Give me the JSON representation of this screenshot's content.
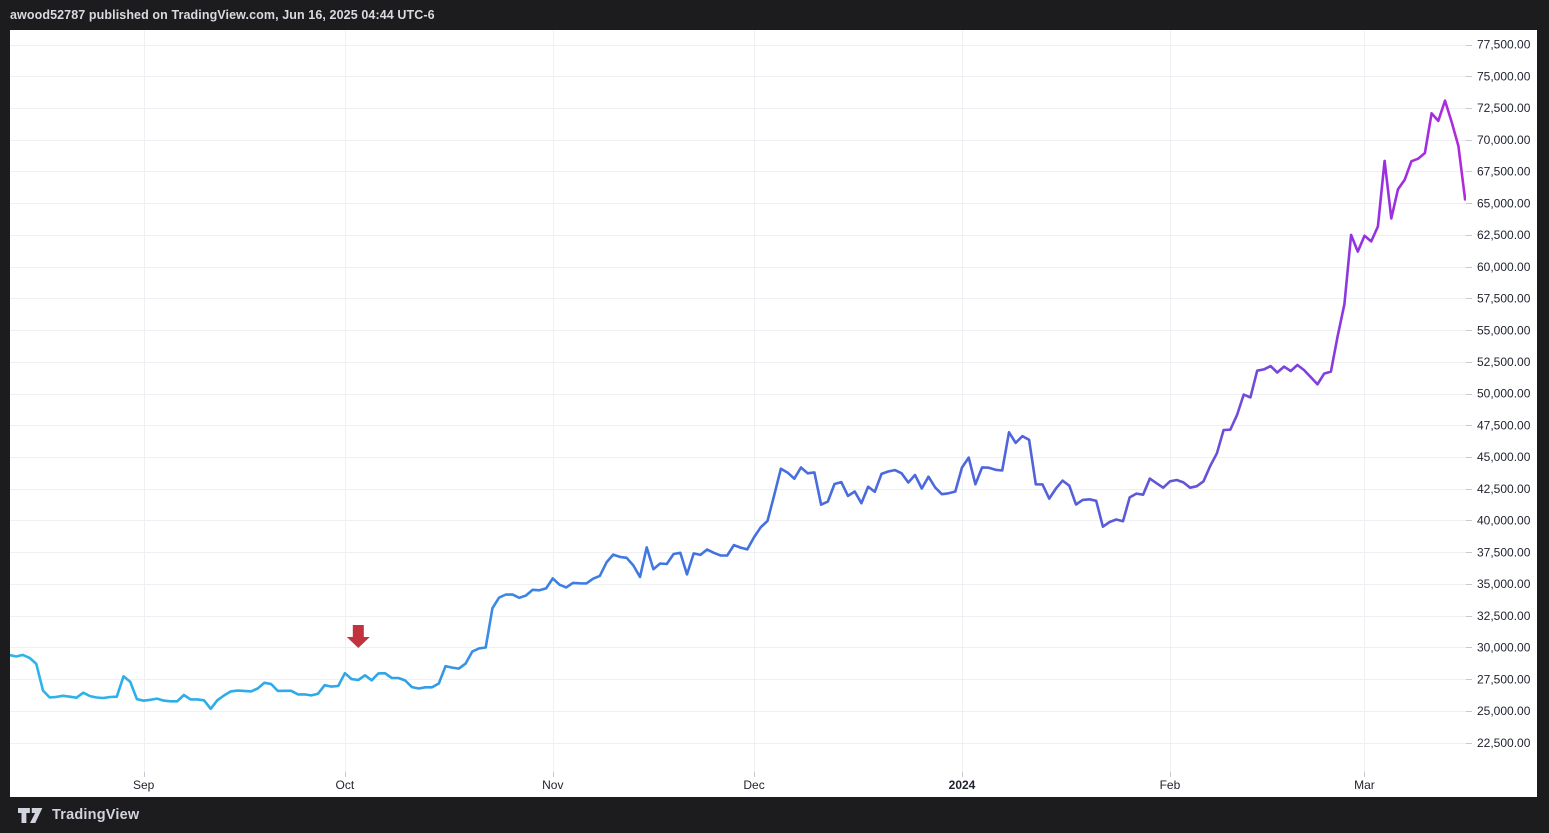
{
  "header": {
    "title": "awood52787 published on TradingView.com, Jun 16, 2025 04:44 UTC-6"
  },
  "footer": {
    "brand": "TradingView",
    "logo_icon": "tradingview-logo"
  },
  "colors": {
    "page_bg": "#1c1c1e",
    "panel_bg": "#ffffff",
    "grid": "#eef0f3",
    "tick": "#c5c8cf",
    "axis_text": "#1e222d",
    "bar_text": "#d8dbe0",
    "annotation_red": "#c2333f"
  },
  "chart_data": {
    "type": "line",
    "title": "",
    "xlabel": "",
    "ylabel": "",
    "grid": true,
    "legend": "none",
    "ylim": [
      20200,
      78600
    ],
    "x_range": [
      "2023-08-12",
      "2024-03-17"
    ],
    "y_ticks": [
      {
        "value": 77500,
        "label": "77,500.00"
      },
      {
        "value": 75000,
        "label": "75,000.00"
      },
      {
        "value": 72500,
        "label": "72,500.00"
      },
      {
        "value": 70000,
        "label": "70,000.00"
      },
      {
        "value": 67500,
        "label": "67,500.00"
      },
      {
        "value": 65000,
        "label": "65,000.00"
      },
      {
        "value": 62500,
        "label": "62,500.00"
      },
      {
        "value": 60000,
        "label": "60,000.00"
      },
      {
        "value": 57500,
        "label": "57,500.00"
      },
      {
        "value": 55000,
        "label": "55,000.00"
      },
      {
        "value": 52500,
        "label": "52,500.00"
      },
      {
        "value": 50000,
        "label": "50,000.00"
      },
      {
        "value": 47500,
        "label": "47,500.00"
      },
      {
        "value": 45000,
        "label": "45,000.00"
      },
      {
        "value": 42500,
        "label": "42,500.00"
      },
      {
        "value": 40000,
        "label": "40,000.00"
      },
      {
        "value": 37500,
        "label": "37,500.00"
      },
      {
        "value": 35000,
        "label": "35,000.00"
      },
      {
        "value": 32500,
        "label": "32,500.00"
      },
      {
        "value": 30000,
        "label": "30,000.00"
      },
      {
        "value": 27500,
        "label": "27,500.00"
      },
      {
        "value": 25000,
        "label": "25,000.00"
      },
      {
        "value": 22500,
        "label": "22,500.00"
      }
    ],
    "x_ticks": [
      {
        "label": "Sep",
        "date": "2023-09-01",
        "year": false
      },
      {
        "label": "Oct",
        "date": "2023-10-01",
        "year": false
      },
      {
        "label": "Nov",
        "date": "2023-11-01",
        "year": false
      },
      {
        "label": "Dec",
        "date": "2023-12-01",
        "year": false
      },
      {
        "label": "2024",
        "date": "2024-01-01",
        "year": true
      },
      {
        "label": "Feb",
        "date": "2024-02-01",
        "year": false
      },
      {
        "label": "Mar",
        "date": "2024-03-01",
        "year": false
      }
    ],
    "line_gradient": [
      {
        "offset": 0.0,
        "color": "#2bb5eb"
      },
      {
        "offset": 0.26,
        "color": "#30a5e8"
      },
      {
        "offset": 0.36,
        "color": "#3b82e3"
      },
      {
        "offset": 0.5,
        "color": "#4470e0"
      },
      {
        "offset": 0.68,
        "color": "#4f65dc"
      },
      {
        "offset": 0.8,
        "color": "#6156d8"
      },
      {
        "offset": 0.88,
        "color": "#7a44dc"
      },
      {
        "offset": 0.94,
        "color": "#9930e1"
      },
      {
        "offset": 1.0,
        "color": "#b12add"
      }
    ],
    "annotations": [
      {
        "type": "arrow-down",
        "date": "2023-10-03",
        "price": 29950,
        "color": "#c2333f"
      }
    ],
    "series": {
      "start_date": "2023-08-12",
      "interval": "1D",
      "closes": [
        29400,
        29280,
        29410,
        29170,
        28700,
        26600,
        26050,
        26100,
        26190,
        26120,
        26040,
        26430,
        26160,
        26050,
        26010,
        26090,
        26120,
        27720,
        27300,
        25930,
        25800,
        25870,
        25970,
        25810,
        25750,
        25750,
        26250,
        25900,
        25900,
        25830,
        25160,
        25840,
        26220,
        26530,
        26600,
        26570,
        26530,
        26760,
        27210,
        27120,
        26570,
        26580,
        26580,
        26300,
        26300,
        26220,
        26350,
        27020,
        26910,
        26960,
        27970,
        27500,
        27430,
        27800,
        27410,
        27950,
        27960,
        27590,
        27590,
        27390,
        26870,
        26760,
        26860,
        26860,
        27160,
        28520,
        28410,
        28330,
        28720,
        29680,
        29920,
        29990,
        33080,
        33920,
        34170,
        34160,
        33910,
        34090,
        34540,
        34500,
        34650,
        35440,
        34940,
        34730,
        35080,
        35050,
        35040,
        35410,
        35630,
        36700,
        37310,
        37130,
        37060,
        36460,
        35550,
        37880,
        36160,
        36610,
        36570,
        37360,
        37450,
        35750,
        37410,
        37290,
        37710,
        37450,
        37250,
        37240,
        38060,
        37860,
        37720,
        38690,
        39470,
        39970,
        41990,
        44080,
        43770,
        43290,
        44170,
        43720,
        43790,
        41240,
        41490,
        42870,
        43020,
        41940,
        42280,
        41360,
        42660,
        42260,
        43670,
        43860,
        43970,
        43720,
        42990,
        43580,
        42520,
        43450,
        42600,
        42070,
        42140,
        42280,
        44170,
        44950,
        42850,
        44180,
        44160,
        43990,
        43940,
        46950,
        46110,
        46650,
        46360,
        42850,
        42840,
        41720,
        42510,
        43140,
        42740,
        41260,
        41620,
        41670,
        41550,
        39510,
        39880,
        40080,
        39940,
        41820,
        42120,
        42030,
        43300,
        42940,
        42580,
        43080,
        43190,
        43000,
        42580,
        42700,
        43090,
        44290,
        45290,
        47130,
        47150,
        48300,
        49920,
        49700,
        51800,
        51900,
        52160,
        51660,
        52120,
        51780,
        52250,
        51850,
        51290,
        50730,
        51570,
        51730,
        54500,
        57040,
        62500,
        61180,
        62440,
        61990,
        63160,
        68330,
        63800,
        66100,
        66850,
        68300,
        68500,
        68950,
        72080,
        71480,
        73080,
        71390,
        69500,
        65300,
        66300
      ]
    }
  }
}
